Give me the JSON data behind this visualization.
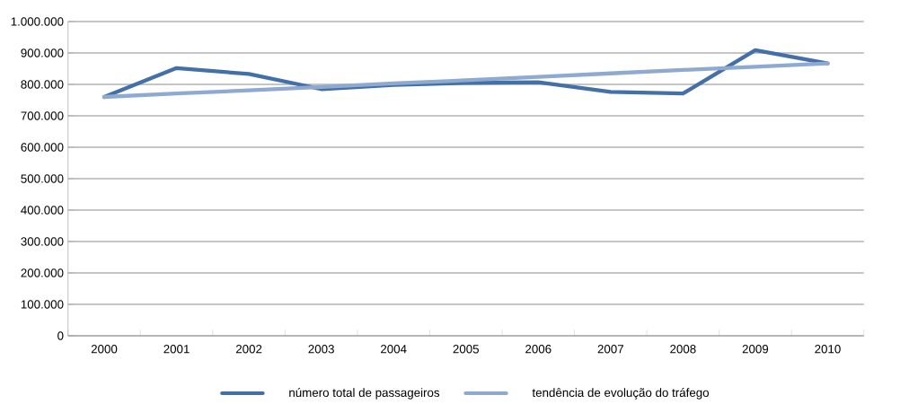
{
  "chart_data": {
    "type": "line",
    "categories": [
      "2000",
      "2001",
      "2002",
      "2003",
      "2004",
      "2005",
      "2006",
      "2007",
      "2008",
      "2009",
      "2010"
    ],
    "series": [
      {
        "name": "número total de passageiros",
        "color": "#4470a8",
        "values": [
          760000,
          852000,
          833000,
          785000,
          798000,
          805000,
          807000,
          776000,
          771000,
          909000,
          867000
        ]
      },
      {
        "name": "tendência de evolução do tráfego",
        "color": "#8faad0",
        "values": [
          760000,
          771000,
          781000,
          792000,
          803000,
          813000,
          824000,
          835000,
          846000,
          856000,
          867000
        ]
      }
    ],
    "ylim": [
      0,
      1000000
    ],
    "yticks": [
      {
        "value": 0,
        "label": "0"
      },
      {
        "value": 100000,
        "label": "100.000"
      },
      {
        "value": 200000,
        "label": "200.000"
      },
      {
        "value": 300000,
        "label": "300.000"
      },
      {
        "value": 400000,
        "label": "400.000"
      },
      {
        "value": 500000,
        "label": "500.000"
      },
      {
        "value": 600000,
        "label": "600.000"
      },
      {
        "value": 700000,
        "label": "700.000"
      },
      {
        "value": 800000,
        "label": "800.000"
      },
      {
        "value": 900000,
        "label": "900.000"
      },
      {
        "value": 1000000,
        "label": "1.000.000"
      }
    ],
    "grid": "y",
    "legend": "bottom",
    "marker": "none",
    "line_style": "solid"
  }
}
